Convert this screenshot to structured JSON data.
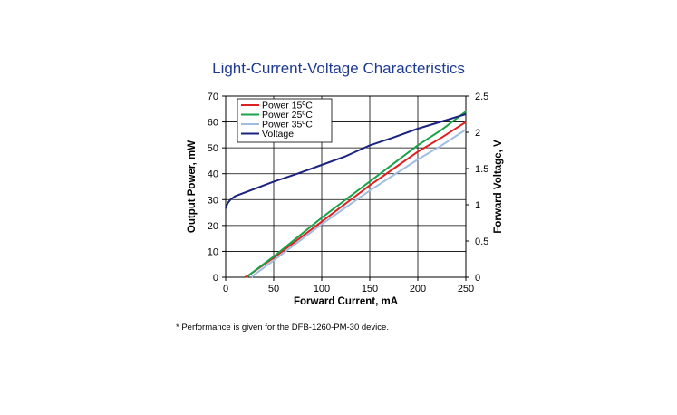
{
  "chart_data": {
    "type": "line",
    "title": "Light-Current-Voltage Characteristics",
    "xlabel": "Forward Current, mA",
    "ylabel": "Output Power, mW",
    "y2label": "Forward Voltage, V",
    "xlim": [
      0,
      250
    ],
    "ylim": [
      0,
      70
    ],
    "y2lim": [
      0,
      2.5
    ],
    "xticks": [
      "0",
      "50",
      "100",
      "150",
      "200",
      "250"
    ],
    "yticks": [
      "0",
      "10",
      "20",
      "30",
      "40",
      "50",
      "60",
      "70"
    ],
    "y2ticks": [
      "0",
      "0.5",
      "1",
      "1.5",
      "2",
      "2.5"
    ],
    "grid": true,
    "legend_position": "top-left",
    "series": [
      {
        "name": "Power  15ºC",
        "axis": "left",
        "color": "#e02020",
        "x": [
          20,
          25,
          50,
          75,
          100,
          125,
          150,
          175,
          200,
          225,
          250
        ],
        "y": [
          0,
          1,
          7.5,
          14.5,
          21.5,
          28.5,
          35.5,
          42,
          48.5,
          54,
          60
        ]
      },
      {
        "name": "Power  25ºC",
        "axis": "left",
        "color": "#1aa34a",
        "x": [
          22,
          25,
          50,
          75,
          100,
          125,
          150,
          175,
          200,
          225,
          250
        ],
        "y": [
          0,
          1,
          8,
          15.5,
          23,
          30,
          37,
          44,
          51,
          57,
          64
        ]
      },
      {
        "name": "Power  35ºC",
        "axis": "left",
        "color": "#a0bde0",
        "x": [
          27,
          30,
          50,
          75,
          100,
          125,
          150,
          175,
          200,
          225,
          250
        ],
        "y": [
          0,
          1,
          6.5,
          13.5,
          20.5,
          27,
          33.5,
          39.5,
          45.5,
          51,
          57
        ]
      },
      {
        "name": "Voltage",
        "axis": "right",
        "color": "#1a237e",
        "x": [
          0,
          2,
          5,
          10,
          20,
          30,
          50,
          75,
          100,
          125,
          150,
          175,
          200,
          225,
          250
        ],
        "y": [
          0.95,
          1.02,
          1.07,
          1.12,
          1.17,
          1.22,
          1.32,
          1.43,
          1.55,
          1.67,
          1.82,
          1.93,
          2.05,
          2.15,
          2.25
        ]
      }
    ]
  },
  "footnote": "* Performance is given for the DFB-1260-PM-30 device."
}
